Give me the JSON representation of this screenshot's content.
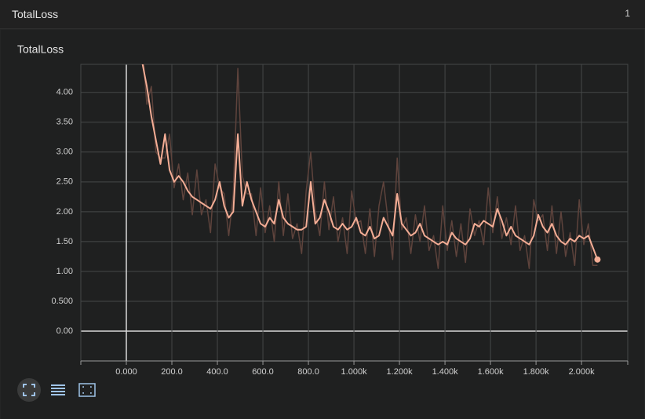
{
  "header": {
    "title": "TotalLoss",
    "count": "1"
  },
  "chart_data": {
    "type": "line",
    "title": "TotalLoss",
    "x": [
      70,
      90,
      110,
      130,
      150,
      170,
      190,
      210,
      230,
      250,
      270,
      290,
      310,
      330,
      350,
      370,
      390,
      410,
      430,
      450,
      470,
      490,
      510,
      530,
      550,
      570,
      590,
      610,
      630,
      650,
      670,
      690,
      710,
      730,
      750,
      770,
      790,
      810,
      830,
      850,
      870,
      890,
      910,
      930,
      950,
      970,
      990,
      1010,
      1030,
      1050,
      1070,
      1090,
      1110,
      1130,
      1150,
      1170,
      1190,
      1210,
      1230,
      1250,
      1270,
      1290,
      1310,
      1330,
      1350,
      1370,
      1390,
      1410,
      1430,
      1450,
      1470,
      1490,
      1510,
      1530,
      1550,
      1570,
      1590,
      1610,
      1630,
      1650,
      1670,
      1690,
      1710,
      1730,
      1750,
      1770,
      1790,
      1810,
      1830,
      1850,
      1870,
      1890,
      1910,
      1930,
      1950,
      1970,
      1990,
      2010,
      2030,
      2050,
      2070
    ],
    "series": [
      {
        "color": "#5e433c",
        "values": [
          4.8,
          3.8,
          4.1,
          3.0,
          2.9,
          2.9,
          3.3,
          2.4,
          2.8,
          2.2,
          2.65,
          1.95,
          2.7,
          1.95,
          2.2,
          1.65,
          2.8,
          2.4,
          2.3,
          1.6,
          2.3,
          4.4,
          2.6,
          2.3,
          2.3,
          1.6,
          2.4,
          1.65,
          2.1,
          1.5,
          2.5,
          1.6,
          2.3,
          1.55,
          1.8,
          1.3,
          2.35,
          3.0,
          2.0,
          1.6,
          2.5,
          1.7,
          2.25,
          1.5,
          1.9,
          1.3,
          2.35,
          1.8,
          1.85,
          1.3,
          2.05,
          1.25,
          2.1,
          2.5,
          1.85,
          1.2,
          2.9,
          1.7,
          1.9,
          1.3,
          1.95,
          1.5,
          2.1,
          1.35,
          1.6,
          1.05,
          2.1,
          1.35,
          1.85,
          1.25,
          1.8,
          1.15,
          2.05,
          1.6,
          1.85,
          1.45,
          2.4,
          1.65,
          2.25,
          1.55,
          1.9,
          1.45,
          2.1,
          1.35,
          1.6,
          1.05,
          2.2,
          1.85,
          1.95,
          1.35,
          2.1,
          1.3,
          2.0,
          1.25,
          1.65,
          1.1,
          2.2,
          1.45,
          1.8,
          1.1,
          1.1
        ]
      },
      {
        "color": "#f4ad95",
        "values": [
          4.5,
          4.1,
          3.6,
          3.2,
          2.8,
          3.3,
          2.7,
          2.5,
          2.6,
          2.5,
          2.35,
          2.25,
          2.2,
          2.15,
          2.1,
          2.05,
          2.2,
          2.5,
          2.1,
          1.9,
          2.0,
          3.3,
          2.1,
          2.5,
          2.2,
          2.0,
          1.8,
          1.75,
          1.9,
          1.8,
          2.2,
          1.9,
          1.8,
          1.75,
          1.7,
          1.7,
          1.75,
          2.5,
          1.8,
          1.9,
          2.2,
          2.0,
          1.75,
          1.7,
          1.8,
          1.7,
          1.75,
          1.9,
          1.65,
          1.6,
          1.75,
          1.55,
          1.6,
          1.9,
          1.75,
          1.6,
          2.3,
          1.8,
          1.7,
          1.6,
          1.65,
          1.8,
          1.6,
          1.55,
          1.5,
          1.45,
          1.5,
          1.45,
          1.65,
          1.55,
          1.5,
          1.45,
          1.55,
          1.8,
          1.75,
          1.85,
          1.8,
          1.75,
          2.05,
          1.85,
          1.6,
          1.75,
          1.6,
          1.55,
          1.5,
          1.45,
          1.6,
          1.95,
          1.75,
          1.65,
          1.8,
          1.6,
          1.5,
          1.45,
          1.55,
          1.5,
          1.6,
          1.55,
          1.6,
          1.4,
          1.2
        ]
      }
    ],
    "xlim": [
      -200,
      2203
    ],
    "ylim": [
      -0.5,
      4.47
    ],
    "xticks": [
      {
        "value": 0,
        "label": "0.000"
      },
      {
        "value": 200,
        "label": "200.0"
      },
      {
        "value": 400,
        "label": "400.0"
      },
      {
        "value": 600,
        "label": "600.0"
      },
      {
        "value": 800,
        "label": "800.0"
      },
      {
        "value": 1000,
        "label": "1.000k"
      },
      {
        "value": 1200,
        "label": "1.200k"
      },
      {
        "value": 1400,
        "label": "1.400k"
      },
      {
        "value": 1600,
        "label": "1.600k"
      },
      {
        "value": 1800,
        "label": "1.800k"
      },
      {
        "value": 2000,
        "label": "2.000k"
      }
    ],
    "yticks": [
      {
        "value": 0,
        "label": "0.00"
      },
      {
        "value": 0.5,
        "label": "0.500"
      },
      {
        "value": 1,
        "label": "1.00"
      },
      {
        "value": 1.5,
        "label": "1.50"
      },
      {
        "value": 2,
        "label": "2.00"
      },
      {
        "value": 2.5,
        "label": "2.50"
      },
      {
        "value": 3,
        "label": "3.00"
      },
      {
        "value": 3.5,
        "label": "3.50"
      },
      {
        "value": 4,
        "label": "4.00"
      }
    ],
    "grid": true
  }
}
